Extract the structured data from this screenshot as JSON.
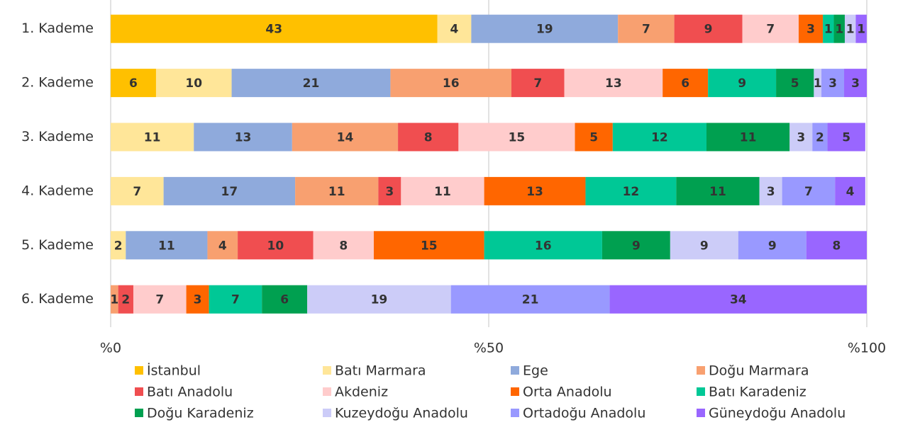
{
  "chart_data": {
    "type": "stacked-bar-horizontal",
    "categories": [
      "1. Kademe",
      "2. Kademe",
      "3. Kademe",
      "4. Kademe",
      "5. Kademe",
      "6. Kademe"
    ],
    "xlim": [
      0,
      100
    ],
    "xticks": [
      {
        "value": 0,
        "label": "%0"
      },
      {
        "value": 50,
        "label": "%50"
      },
      {
        "value": 100,
        "label": "%100"
      }
    ],
    "grid": true,
    "legend": "bottom",
    "series": [
      {
        "name": "İstanbul",
        "color": "#ffc000",
        "values": [
          43.2,
          6,
          null,
          null,
          null,
          null
        ],
        "value_labels": [
          "43",
          "6",
          null,
          null,
          null,
          null
        ]
      },
      {
        "name": "Batı Marmara",
        "color": "#ffe699",
        "values": [
          4.49,
          10,
          11,
          7,
          2,
          null
        ],
        "value_labels": [
          "4",
          "10",
          "11",
          "7",
          "2",
          null
        ]
      },
      {
        "name": "Ege",
        "color": "#8faadc",
        "values": [
          19.4,
          21,
          13,
          17.4,
          10.8,
          null
        ],
        "value_labels": [
          "19",
          "21",
          "13",
          "17",
          "11",
          null
        ]
      },
      {
        "name": "Doğu Marmara",
        "color": "#f8a070",
        "values": [
          7.45,
          16,
          14,
          11,
          4,
          1
        ],
        "value_labels": [
          "7",
          "16",
          "14",
          "11",
          "4",
          "1"
        ]
      },
      {
        "name": "Batı Anadolu",
        "color": "#f04e50",
        "values": [
          9,
          7,
          8,
          3,
          10,
          2
        ]
      },
      {
        "name": "Akdeniz",
        "color": "#ffcccc",
        "values": [
          7.45,
          13,
          15.4,
          11,
          8,
          7
        ],
        "value_labels": [
          "7",
          "13",
          "15",
          "11",
          "8",
          "7"
        ]
      },
      {
        "name": "Orta Anadolu",
        "color": "#ff6600",
        "values": [
          3.2,
          6,
          5,
          13.4,
          14.6,
          3
        ],
        "value_labels": [
          "3",
          "6",
          "5",
          "13",
          "15",
          "3"
        ]
      },
      {
        "name": "Batı Karadeniz",
        "color": "#00c896",
        "values": [
          1.45,
          9,
          12.4,
          12,
          15.6,
          7
        ],
        "value_labels": [
          "1",
          "9",
          "12",
          "12",
          "16",
          "7"
        ]
      },
      {
        "name": "Doğu Karadeniz",
        "color": "#00a050",
        "values": [
          1.45,
          5,
          11,
          11,
          9,
          6
        ],
        "value_labels": [
          "1",
          "5",
          "11",
          "11",
          "9",
          "6"
        ]
      },
      {
        "name": "Kuzeydoğu Anadolu",
        "color": "#ccccf8",
        "values": [
          1.45,
          1,
          3,
          3,
          9,
          19
        ],
        "value_labels": [
          "1",
          "1",
          "3",
          "3",
          "9",
          "19"
        ]
      },
      {
        "name": "Ortadoğu Anadolu",
        "color": "#9999ff",
        "values": [
          null,
          3,
          2,
          7,
          9,
          21
        ]
      },
      {
        "name": "Güneydoğu Anadolu",
        "color": "#9966ff",
        "values": [
          1.45,
          3,
          5,
          4,
          8,
          34
        ],
        "value_labels": [
          "1",
          "3",
          "5",
          "4",
          "8",
          "34"
        ]
      }
    ]
  }
}
